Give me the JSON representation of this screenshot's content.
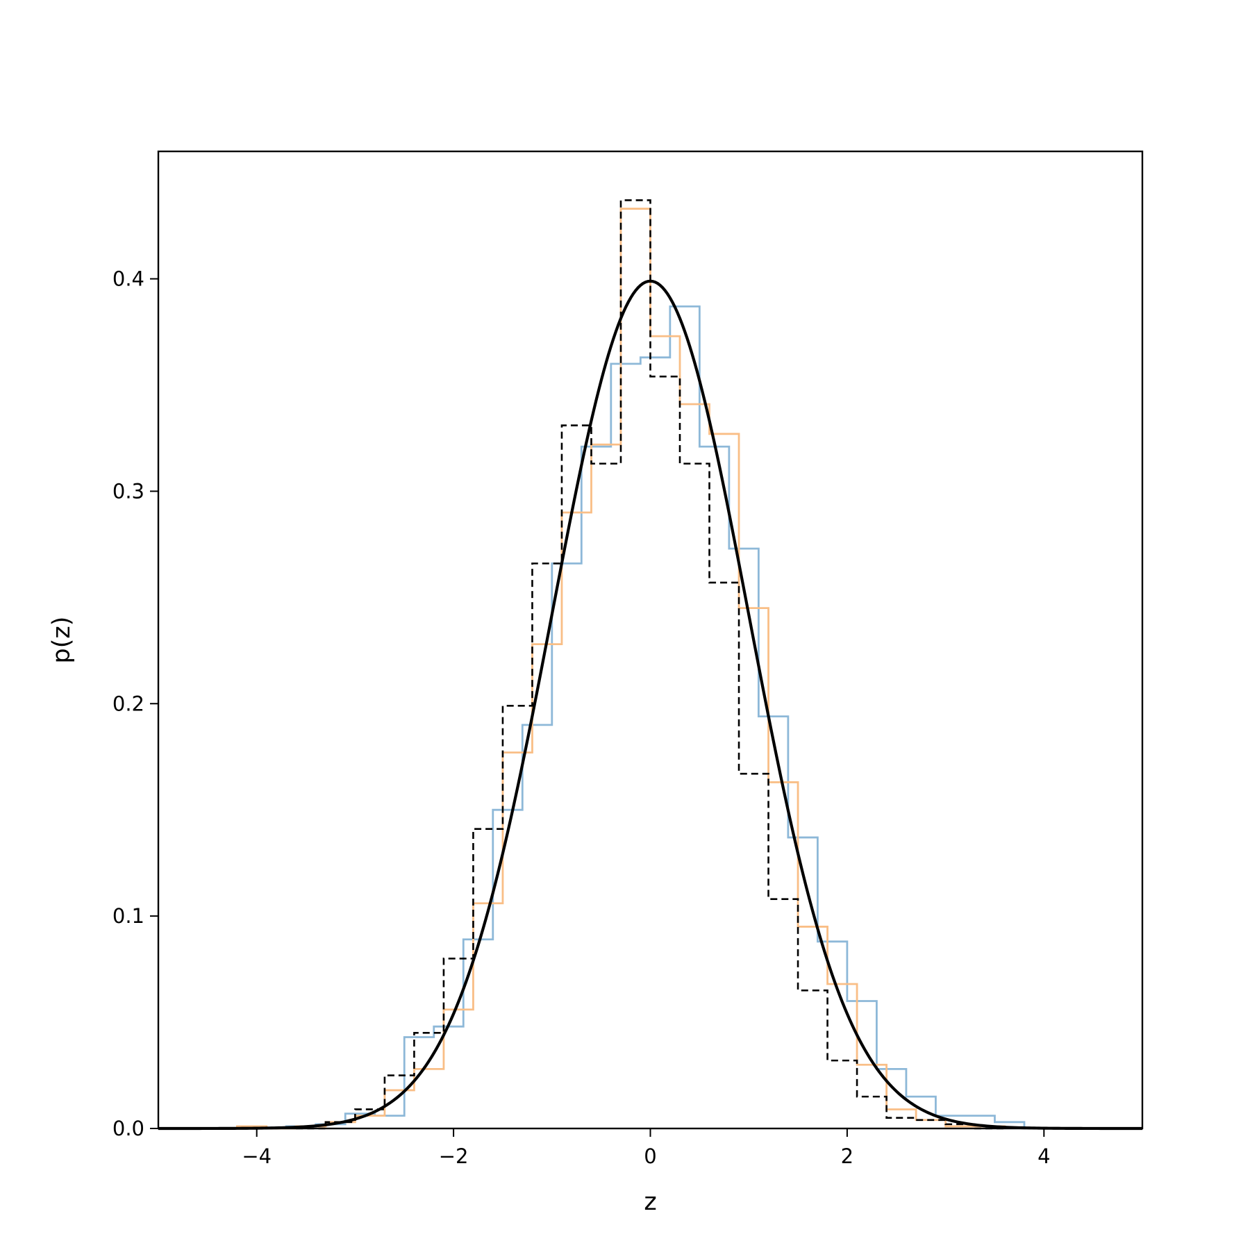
{
  "chart_data": {
    "type": "line",
    "title": "",
    "xlabel": "z",
    "ylabel": "p(z)",
    "xlim": [
      -5,
      5
    ],
    "ylim": [
      0,
      0.46
    ],
    "x_ticks": [
      -4,
      -2,
      0,
      2,
      4
    ],
    "x_tick_labels": [
      "−4",
      "−2",
      "0",
      "2",
      "4"
    ],
    "y_ticks": [
      0.0,
      0.1,
      0.2,
      0.3,
      0.4
    ],
    "y_tick_labels": [
      "0.0",
      "0.1",
      "0.2",
      "0.3",
      "0.4"
    ],
    "grid": false,
    "legend": false,
    "series": [
      {
        "kind": "step-histogram",
        "color": "#8db8d8",
        "edges": [
          -3.7,
          -3.4,
          -3.1,
          -2.8,
          -2.5,
          -2.2,
          -1.9,
          -1.6,
          -1.3,
          -1.0,
          -0.7,
          -0.4,
          -0.1,
          0.2,
          0.5,
          0.8,
          1.1,
          1.4,
          1.7,
          2.0,
          2.3,
          2.6,
          2.9,
          3.2,
          3.5,
          3.8
        ],
        "values": [
          0.001,
          0.002,
          0.007,
          0.006,
          0.043,
          0.048,
          0.089,
          0.15,
          0.19,
          0.266,
          0.321,
          0.36,
          0.363,
          0.387,
          0.321,
          0.273,
          0.194,
          0.137,
          0.088,
          0.06,
          0.028,
          0.015,
          0.006,
          0.006,
          0.003
        ]
      },
      {
        "kind": "step-histogram",
        "color": "#f9be86",
        "edges": [
          -4.2,
          -3.9,
          -3.6,
          -3.3,
          -3.0,
          -2.7,
          -2.4,
          -2.1,
          -1.8,
          -1.5,
          -1.2,
          -0.9,
          -0.6,
          -0.3,
          0.0,
          0.3,
          0.6,
          0.9,
          1.2,
          1.5,
          1.8,
          2.1,
          2.4,
          2.7,
          3.0,
          3.3,
          3.6
        ],
        "values": [
          0.001,
          0.0,
          0.001,
          0.003,
          0.006,
          0.018,
          0.028,
          0.056,
          0.106,
          0.177,
          0.228,
          0.29,
          0.322,
          0.433,
          0.373,
          0.341,
          0.327,
          0.245,
          0.163,
          0.095,
          0.068,
          0.03,
          0.009,
          0.004,
          0.001,
          0.001
        ]
      },
      {
        "kind": "step-histogram",
        "color": "#000000",
        "dashed": true,
        "edges": [
          -3.6,
          -3.3,
          -3.0,
          -2.7,
          -2.4,
          -2.1,
          -1.8,
          -1.5,
          -1.2,
          -0.9,
          -0.6,
          -0.3,
          0.0,
          0.3,
          0.6,
          0.9,
          1.2,
          1.5,
          1.8,
          2.1,
          2.4,
          2.7,
          3.0,
          3.3,
          3.6
        ],
        "values": [
          0.0,
          0.003,
          0.009,
          0.025,
          0.045,
          0.08,
          0.141,
          0.199,
          0.266,
          0.331,
          0.313,
          0.437,
          0.354,
          0.313,
          0.257,
          0.167,
          0.108,
          0.065,
          0.032,
          0.015,
          0.005,
          0.004,
          0.002,
          0.0
        ]
      },
      {
        "kind": "curve",
        "function": "standard normal pdf",
        "color": "#000000",
        "x_range": [
          -5,
          5
        ]
      }
    ]
  }
}
